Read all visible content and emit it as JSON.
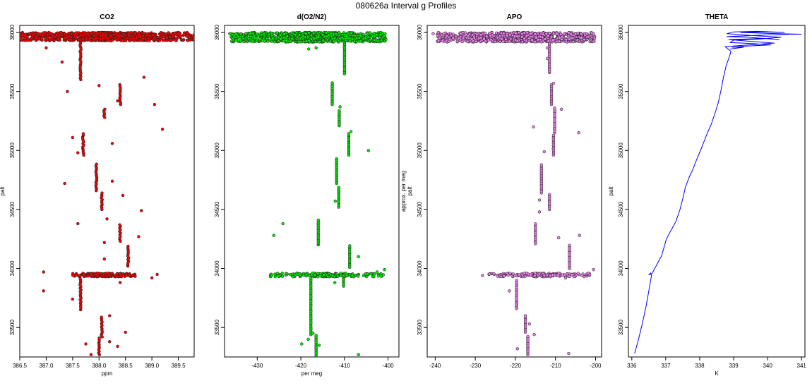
{
  "figure": {
    "title": "080626a   Interval g Profiles"
  },
  "colors": {
    "co2": "#ff0000",
    "o2n2": "#00ee00",
    "apo": "#ee82ee",
    "theta": "#0000ff",
    "outline": "#222222"
  },
  "chart_data": [
    {
      "type": "scatter",
      "title": "CO2",
      "xlabel": "ppm",
      "ylabel": "palt",
      "xlim": [
        386.5,
        389.8
      ],
      "ylim": [
        33250,
        36060
      ],
      "xticks": [
        "386.5",
        "387.0",
        "387.5",
        "388.0",
        "388.5",
        "389.0",
        "389.5"
      ],
      "yticks": [
        "33500",
        "34000",
        "34500",
        "35000",
        "35500",
        "36000"
      ],
      "series": [
        {
          "role": "column",
          "values": [
            [
              387.65,
              35600,
              35990
            ],
            [
              388.4,
              35390,
              35560
            ],
            [
              388.1,
              35280,
              35350
            ],
            [
              387.7,
              34960,
              35150
            ],
            [
              387.95,
              34660,
              34890
            ],
            [
              388.05,
              34500,
              34640
            ],
            [
              388.4,
              34230,
              34380
            ],
            [
              388.55,
              34020,
              34200
            ],
            [
              387.65,
              33650,
              33920
            ],
            [
              388.05,
              33420,
              33600
            ],
            [
              388.0,
              33270,
              33410
            ]
          ]
        },
        {
          "role": "dense-band",
          "values": [
            [
              386.5,
              389.8,
              35930,
              36000
            ],
            [
              387.5,
              388.7,
              33930,
              33960
            ]
          ]
        },
        {
          "role": "scatter",
          "values": [
            [
              386.55,
              35980
            ],
            [
              387.0,
              35870
            ],
            [
              387.3,
              35750
            ],
            [
              388.85,
              35620
            ],
            [
              388.0,
              35550
            ],
            [
              387.4,
              35500
            ],
            [
              389.05,
              35390
            ],
            [
              388.35,
              35420
            ],
            [
              389.2,
              35180
            ],
            [
              388.25,
              35060
            ],
            [
              387.5,
              35110
            ],
            [
              387.6,
              34980
            ],
            [
              387.35,
              34720
            ],
            [
              388.25,
              34740
            ],
            [
              388.45,
              34620
            ],
            [
              388.15,
              34420
            ],
            [
              388.8,
              34490
            ],
            [
              387.6,
              34380
            ],
            [
              388.75,
              34270
            ],
            [
              388.1,
              34220
            ],
            [
              388.1,
              34080
            ],
            [
              386.95,
              33970
            ],
            [
              389.1,
              33950
            ],
            [
              389.0,
              33920
            ],
            [
              386.95,
              33810
            ],
            [
              388.4,
              33880
            ],
            [
              387.5,
              33740
            ],
            [
              388.2,
              33600
            ],
            [
              388.5,
              33460
            ],
            [
              387.75,
              33360
            ],
            [
              388.2,
              33380
            ],
            [
              387.85,
              33270
            ],
            [
              388.35,
              33340
            ]
          ]
        }
      ]
    },
    {
      "type": "scatter",
      "title": "d(O2/N2)",
      "xlabel": "per meg",
      "ylabel": "",
      "xlim": [
        -437.5,
        -397.5
      ],
      "ylim": [
        33250,
        36060
      ],
      "xticks": [
        "-430",
        "-420",
        "-410",
        "-400"
      ],
      "yticks": [
        "33500",
        "34000",
        "34500",
        "35000",
        "35500",
        "36000"
      ],
      "series": [
        {
          "role": "column",
          "values": [
            [
              -410.0,
              35650,
              35950
            ],
            [
              -412.8,
              35390,
              35580
            ],
            [
              -411.2,
              35210,
              35340
            ],
            [
              -409.0,
              34960,
              35150
            ],
            [
              -411.8,
              34720,
              34930
            ],
            [
              -411.3,
              34520,
              34700
            ],
            [
              -416.0,
              34200,
              34410
            ],
            [
              -408.8,
              34010,
              34200
            ],
            [
              -410.2,
              33850,
              33960
            ],
            [
              -417.7,
              33440,
              33920
            ],
            [
              -416.5,
              33250,
              33440
            ]
          ]
        },
        {
          "role": "dense-band",
          "values": [
            [
              -436.0,
              -400.5,
              35920,
              36000
            ],
            [
              -427.0,
              -401.0,
              33930,
              33960
            ]
          ]
        },
        {
          "role": "scatter",
          "values": [
            [
              -436.3,
              35990
            ],
            [
              -431.0,
              35930
            ],
            [
              -416.0,
              35960
            ],
            [
              -400.5,
              35940
            ],
            [
              -418.2,
              35860
            ],
            [
              -416.5,
              35870
            ],
            [
              -411.0,
              35370
            ],
            [
              -408.5,
              35160
            ],
            [
              -404.5,
              35000
            ],
            [
              -412.1,
              34570
            ],
            [
              -426.2,
              34280
            ],
            [
              -424.1,
              34380
            ],
            [
              -406.8,
              34100
            ],
            [
              -400.8,
              33990
            ],
            [
              -402.5,
              33970
            ],
            [
              -412.2,
              33880
            ],
            [
              -417.2,
              33450
            ],
            [
              -418.3,
              33400
            ],
            [
              -415.8,
              33350
            ],
            [
              -419.8,
              33360
            ],
            [
              -406.8,
              33270
            ]
          ]
        }
      ]
    },
    {
      "type": "scatter",
      "title": "APO",
      "xlabel": "",
      "ylabel": "approx. per meg\npalt",
      "xlim": [
        -242,
        -198.5
      ],
      "ylim": [
        33250,
        36060
      ],
      "xticks": [
        "-240",
        "-230",
        "-220",
        "-210",
        "-200"
      ],
      "yticks": [
        "33500",
        "34000",
        "34500",
        "35000",
        "35500",
        "36000"
      ],
      "series": [
        {
          "role": "column",
          "values": [
            [
              -211.5,
              35660,
              35950
            ],
            [
              -211.0,
              35390,
              35570
            ],
            [
              -210.2,
              35150,
              35370
            ],
            [
              -210.5,
              34960,
              35140
            ],
            [
              -213.5,
              34640,
              34880
            ],
            [
              -211.5,
              34500,
              34630
            ],
            [
              -215.0,
              34210,
              34390
            ],
            [
              -206.5,
              34000,
              34200
            ],
            [
              -219.7,
              33660,
              33900
            ],
            [
              -217.5,
              33460,
              33610
            ],
            [
              -216.9,
              33270,
              33430
            ]
          ]
        },
        {
          "role": "dense-band",
          "values": [
            [
              -239.5,
              -200.0,
              35920,
              36000
            ],
            [
              -227.0,
              -201.0,
              33930,
              33960
            ]
          ]
        },
        {
          "role": "scatter",
          "values": [
            [
              -240.5,
              35990
            ],
            [
              -233.0,
              35950
            ],
            [
              -200.5,
              35990
            ],
            [
              -212.0,
              35870
            ],
            [
              -212.0,
              35780
            ],
            [
              -210.5,
              35570
            ],
            [
              -208.5,
              35350
            ],
            [
              -204.2,
              35150
            ],
            [
              -215.5,
              35200
            ],
            [
              -212.8,
              34990
            ],
            [
              -214.0,
              34580
            ],
            [
              -214.0,
              34480
            ],
            [
              -209.2,
              34260
            ],
            [
              -204.0,
              34280
            ],
            [
              -200.5,
              33990
            ],
            [
              -228.2,
              33940
            ],
            [
              -207.5,
              33920
            ],
            [
              -221.5,
              33810
            ],
            [
              -219.8,
              33700
            ],
            [
              -216.5,
              33530
            ],
            [
              -215.3,
              33440
            ],
            [
              -219.5,
              33320
            ],
            [
              -206.7,
              33280
            ]
          ]
        }
      ]
    },
    {
      "type": "line",
      "title": "THETA",
      "xlabel": "K",
      "ylabel": "palt",
      "xlim": [
        335.9,
        341.1
      ],
      "ylim": [
        33250,
        36060
      ],
      "xticks": [
        "336",
        "337",
        "338",
        "339",
        "340",
        "341"
      ],
      "yticks": [
        "33500",
        "34000",
        "34500",
        "35000",
        "35500",
        "36000"
      ],
      "series": [
        {
          "name": "",
          "values": [
            [
              336.08,
              33280
            ],
            [
              336.18,
              33380
            ],
            [
              336.3,
              33520
            ],
            [
              336.42,
              33680
            ],
            [
              336.52,
              33840
            ],
            [
              336.58,
              33940
            ],
            [
              336.55,
              33960
            ],
            [
              336.5,
              33945
            ],
            [
              336.6,
              33960
            ],
            [
              336.75,
              34040
            ],
            [
              336.88,
              34110
            ],
            [
              337.02,
              34250
            ],
            [
              337.15,
              34320
            ],
            [
              337.3,
              34400
            ],
            [
              337.42,
              34500
            ],
            [
              337.5,
              34590
            ],
            [
              337.58,
              34690
            ],
            [
              337.7,
              34780
            ],
            [
              337.8,
              34840
            ],
            [
              337.92,
              34930
            ],
            [
              338.05,
              35020
            ],
            [
              338.2,
              35130
            ],
            [
              338.35,
              35230
            ],
            [
              338.48,
              35340
            ],
            [
              338.55,
              35410
            ],
            [
              338.62,
              35500
            ],
            [
              338.7,
              35620
            ],
            [
              338.78,
              35720
            ],
            [
              338.88,
              35800
            ],
            [
              338.92,
              35840
            ],
            [
              338.75,
              35880
            ],
            [
              339.7,
              35900
            ],
            [
              340.2,
              35910
            ],
            [
              339.5,
              35925
            ],
            [
              338.85,
              35940
            ],
            [
              339.9,
              35950
            ],
            [
              340.35,
              35940
            ],
            [
              339.4,
              35960
            ],
            [
              338.8,
              35965
            ],
            [
              339.6,
              35975
            ],
            [
              340.7,
              35985
            ],
            [
              341.0,
              35985
            ],
            [
              340.3,
              35990
            ],
            [
              339.2,
              36000
            ],
            [
              339.9,
              36005
            ],
            [
              340.5,
              36000
            ],
            [
              339.7,
              36010
            ],
            [
              339.0,
              36005
            ],
            [
              338.8,
              35990
            ],
            [
              339.5,
              35975
            ],
            [
              340.4,
              35960
            ],
            [
              339.8,
              35945
            ],
            [
              339.0,
              35935
            ],
            [
              338.9,
              35915
            ],
            [
              339.6,
              35905
            ],
            [
              340.1,
              35895
            ],
            [
              339.4,
              35885
            ],
            [
              338.95,
              35875
            ],
            [
              339.3,
              35875
            ],
            [
              338.9,
              35860
            ]
          ]
        }
      ]
    }
  ]
}
